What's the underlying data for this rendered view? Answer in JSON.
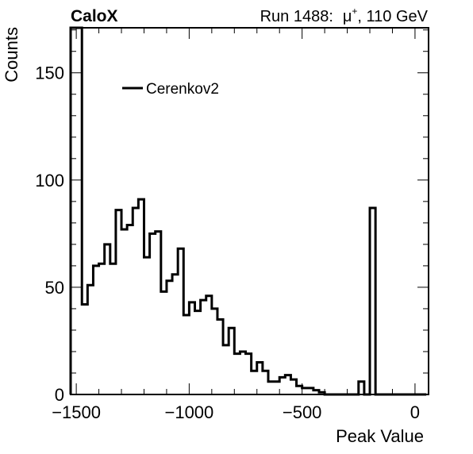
{
  "header": {
    "experiment": "CaloX",
    "run_text": "Run 1488:",
    "particle_symbol": "μ",
    "particle_charge": "+",
    "energy_text": ", 110 GeV"
  },
  "chart_data": {
    "type": "histogram",
    "title": "",
    "xlabel": "Peak Value",
    "ylabel": "Counts",
    "xlim": [
      -1525,
      60
    ],
    "ylim": [
      0,
      171
    ],
    "x_ticks": [
      -1500,
      -1000,
      -500,
      0
    ],
    "x_tick_labels": [
      "−1500",
      "−1000",
      "−500",
      "0"
    ],
    "y_ticks": [
      0,
      50,
      100,
      150
    ],
    "y_tick_labels": [
      "0",
      "50",
      "100",
      "150"
    ],
    "grid": false,
    "legend": {
      "position": "top-left",
      "entries": [
        "Cerenkov2"
      ]
    },
    "series": [
      {
        "name": "Cerenkov2",
        "color": "#000000",
        "bin_edges": [
          -1525,
          -1500,
          -1475,
          -1450,
          -1425,
          -1400,
          -1375,
          -1350,
          -1325,
          -1300,
          -1275,
          -1250,
          -1225,
          -1200,
          -1175,
          -1150,
          -1125,
          -1100,
          -1075,
          -1050,
          -1025,
          -1000,
          -975,
          -950,
          -925,
          -900,
          -875,
          -850,
          -825,
          -800,
          -775,
          -750,
          -725,
          -700,
          -675,
          -650,
          -625,
          -600,
          -575,
          -550,
          -525,
          -500,
          -475,
          -450,
          -425,
          -400,
          -375,
          -350,
          -325,
          -300,
          -275,
          -250,
          -225,
          -200,
          -175,
          -150,
          -125,
          -100,
          -75,
          -50,
          -25,
          0,
          25,
          50
        ],
        "counts": [
          171,
          171,
          42,
          51,
          60,
          61,
          70,
          61,
          86,
          77,
          79,
          87,
          91,
          64,
          75,
          76,
          48,
          53,
          56,
          68,
          37,
          43,
          39,
          44,
          46,
          40,
          35,
          23,
          31,
          19,
          20,
          19,
          11,
          15,
          11,
          6,
          6,
          8,
          9,
          7,
          4,
          3,
          3,
          2,
          1,
          0,
          0,
          0,
          0,
          0,
          0,
          6,
          0,
          87,
          0,
          0,
          0,
          0,
          0,
          0,
          0,
          0,
          0
        ]
      }
    ]
  }
}
